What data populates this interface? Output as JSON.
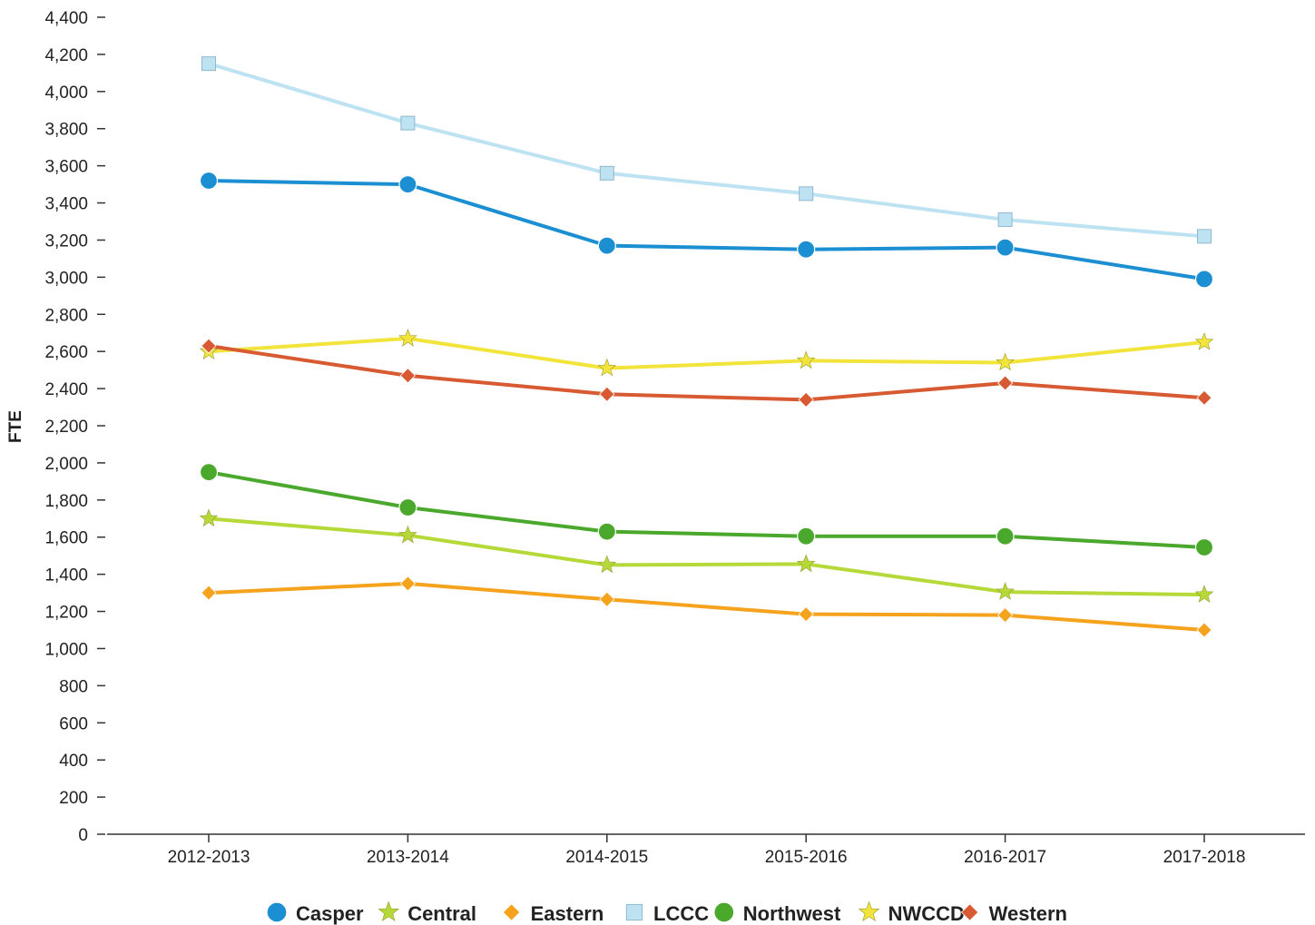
{
  "chart_data": {
    "type": "line",
    "title": "",
    "xlabel": "",
    "ylabel": "FTE",
    "ylim": [
      0,
      4400
    ],
    "y_ticks": [
      "0",
      "200",
      "400",
      "600",
      "800",
      "1,000",
      "1,200",
      "1,400",
      "1,600",
      "1,800",
      "2,000",
      "2,200",
      "2,400",
      "2,600",
      "2,800",
      "3,000",
      "3,200",
      "3,400",
      "3,600",
      "3,800",
      "4,000",
      "4,200",
      "4,400"
    ],
    "categories": [
      "2012-2013",
      "2013-2014",
      "2014-2015",
      "2015-2016",
      "2016-2017",
      "2017-2018"
    ],
    "grid": false,
    "legend_position": "bottom",
    "series": [
      {
        "name": "Casper",
        "marker": "circle",
        "color": "#1b8fd2",
        "values": [
          3520,
          3500,
          3170,
          3150,
          3160,
          2990
        ]
      },
      {
        "name": "Central",
        "marker": "star",
        "color": "#b6d93a",
        "values": [
          1700,
          1610,
          1450,
          1455,
          1305,
          1290
        ]
      },
      {
        "name": "Eastern",
        "marker": "diamond",
        "color": "#f5a21d",
        "values": [
          1300,
          1350,
          1265,
          1185,
          1180,
          1100
        ]
      },
      {
        "name": "LCCC",
        "marker": "square",
        "color": "#bde3f3",
        "values": [
          4150,
          3830,
          3560,
          3450,
          3310,
          3220
        ]
      },
      {
        "name": "Northwest",
        "marker": "circle",
        "color": "#4aa82c",
        "values": [
          1950,
          1760,
          1630,
          1605,
          1605,
          1545
        ]
      },
      {
        "name": "NWCCD",
        "marker": "star",
        "color": "#f2e43a",
        "values": [
          2600,
          2670,
          2510,
          2550,
          2540,
          2650
        ]
      },
      {
        "name": "Western",
        "marker": "diamond",
        "color": "#d75a33",
        "values": [
          2630,
          2470,
          2370,
          2340,
          2430,
          2350
        ]
      }
    ]
  }
}
